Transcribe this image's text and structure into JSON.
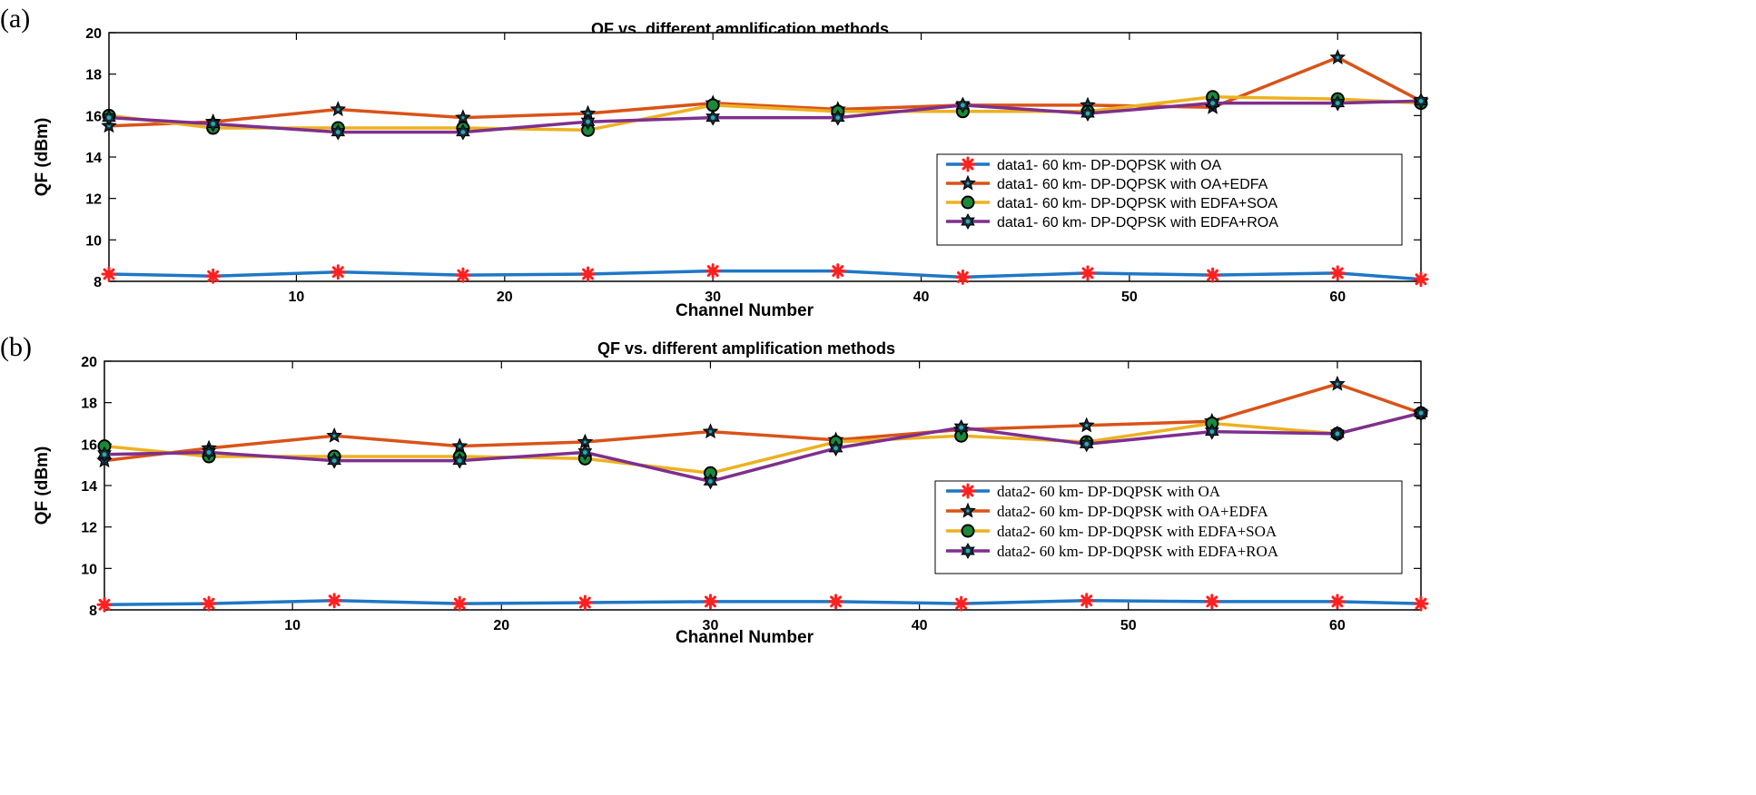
{
  "panels": [
    {
      "letter": "(a)"
    },
    {
      "letter": "(b)"
    }
  ],
  "colors": {
    "oa": "#1f77c4",
    "oa_edfa": "#d95319",
    "edfa_soa": "#edb120",
    "edfa_roa": "#7e2f8e",
    "marker_red": "#ff2020",
    "marker_green": "#1a8a3a",
    "marker_teal": "#20b0b0",
    "marker_dark": "#1a2a3a"
  },
  "chart_data": [
    {
      "type": "line",
      "title": "QF vs. different amplification methods",
      "xlabel": "Channel Number",
      "ylabel": "QF (dBm)",
      "xlim": [
        1,
        64
      ],
      "ylim": [
        8,
        20
      ],
      "xticks": [
        10,
        20,
        30,
        40,
        50,
        60
      ],
      "yticks": [
        8,
        10,
        12,
        14,
        16,
        18,
        20
      ],
      "legend_position": "right-middle",
      "x": [
        1,
        6,
        12,
        18,
        24,
        30,
        36,
        42,
        48,
        54,
        60,
        64
      ],
      "series": [
        {
          "name": "data1- 60 km- DP-DQPSK with OA",
          "marker": "asterisk",
          "values": [
            8.35,
            8.25,
            8.45,
            8.3,
            8.35,
            8.5,
            8.5,
            8.2,
            8.4,
            8.3,
            8.4,
            8.1
          ]
        },
        {
          "name": "data1- 60 km- DP-DQPSK with OA+EDFA",
          "marker": "star",
          "values": [
            15.5,
            15.7,
            16.3,
            15.9,
            16.1,
            16.6,
            16.3,
            16.5,
            16.5,
            16.4,
            18.8,
            16.7
          ]
        },
        {
          "name": "data1- 60 km- DP-DQPSK with EDFA+SOA",
          "marker": "circle",
          "values": [
            16.0,
            15.4,
            15.4,
            15.4,
            15.3,
            16.5,
            16.2,
            16.2,
            16.2,
            16.9,
            16.8,
            16.6
          ]
        },
        {
          "name": "data1- 60 km- DP-DQPSK with EDFA+ROA",
          "marker": "hexagram",
          "values": [
            15.9,
            15.6,
            15.2,
            15.2,
            15.7,
            15.9,
            15.9,
            16.5,
            16.1,
            16.6,
            16.6,
            16.7
          ]
        }
      ]
    },
    {
      "type": "line",
      "title": "QF vs. different amplification methods",
      "xlabel": "Channel Number",
      "ylabel": "QF (dBm)",
      "xlim": [
        1,
        64
      ],
      "ylim": [
        8,
        20
      ],
      "xticks": [
        10,
        20,
        30,
        40,
        50,
        60
      ],
      "yticks": [
        8,
        10,
        12,
        14,
        16,
        18,
        20
      ],
      "legend_position": "right-lower",
      "x": [
        1,
        6,
        12,
        18,
        24,
        30,
        36,
        42,
        48,
        54,
        60,
        64
      ],
      "series": [
        {
          "name": "data2- 60 km- DP-DQPSK with OA",
          "marker": "asterisk",
          "values": [
            8.25,
            8.3,
            8.45,
            8.3,
            8.35,
            8.4,
            8.4,
            8.3,
            8.45,
            8.4,
            8.4,
            8.3
          ]
        },
        {
          "name": "data2- 60 km- DP-DQPSK with OA+EDFA",
          "marker": "star",
          "values": [
            15.2,
            15.8,
            16.4,
            15.9,
            16.1,
            16.6,
            16.2,
            16.7,
            16.9,
            17.1,
            18.9,
            17.5
          ]
        },
        {
          "name": "data2- 60 km- DP-DQPSK with EDFA+SOA",
          "marker": "circle",
          "values": [
            15.9,
            15.4,
            15.4,
            15.4,
            15.3,
            14.6,
            16.1,
            16.4,
            16.1,
            17.0,
            16.5,
            17.5
          ]
        },
        {
          "name": "data2- 60 km- DP-DQPSK with EDFA+ROA",
          "marker": "hexagram",
          "values": [
            15.5,
            15.6,
            15.2,
            15.2,
            15.6,
            14.2,
            15.8,
            16.8,
            16.0,
            16.6,
            16.5,
            17.5
          ]
        }
      ]
    }
  ]
}
